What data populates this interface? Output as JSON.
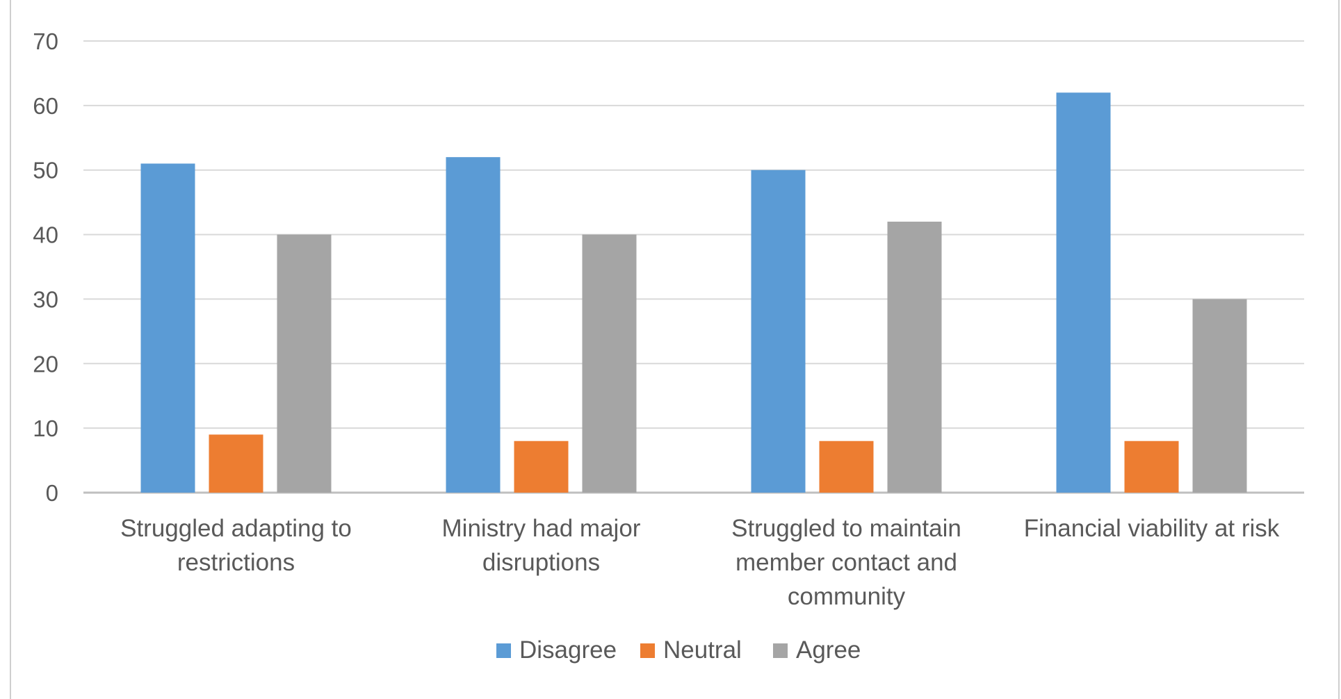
{
  "chart_data": {
    "type": "bar",
    "title": "",
    "xlabel": "",
    "ylabel": "",
    "ylim": [
      0,
      70
    ],
    "yticks": [
      0,
      10,
      20,
      30,
      40,
      50,
      60,
      70
    ],
    "grid": true,
    "legend_position": "bottom",
    "categories": [
      [
        "Struggled adapting to",
        "restrictions"
      ],
      [
        "Ministry had major",
        "disruptions"
      ],
      [
        "Struggled to maintain",
        "member contact and",
        "community"
      ],
      [
        "Financial viability at risk"
      ]
    ],
    "series": [
      {
        "name": "Disagree",
        "color": "#5b9bd5",
        "values": [
          51,
          52,
          50,
          62
        ]
      },
      {
        "name": "Neutral",
        "color": "#ed7d31",
        "values": [
          9,
          8,
          8,
          8
        ]
      },
      {
        "name": "Agree",
        "color": "#a5a5a5",
        "values": [
          40,
          40,
          42,
          30
        ]
      }
    ]
  }
}
